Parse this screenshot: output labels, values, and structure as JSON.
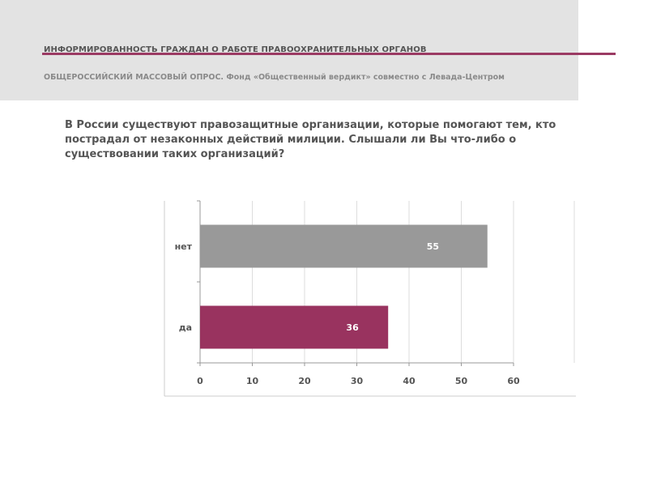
{
  "header": {
    "title": "ИНФОРМИРОВАННОСТЬ ГРАЖДАН О РАБОТЕ ПРАВООХРАНИТЕЛЬНЫХ ОРГАНОВ",
    "subtitle": "ОБЩЕРОССИЙСКИЙ МАССОВЫЙ ОПРОС. Фонд «Общественный вердикт» совместно с Левада-Центром"
  },
  "question": "В России существуют правозащитные организации, которые помогают тем, кто пострадал от незаконных действий милиции. Слышали ли Вы что-либо о существовании таких организаций?",
  "colors": {
    "accent": "#9b3a63",
    "header_bg": "#e3e3e3",
    "bar_no": "#999999",
    "bar_yes": "#99335f",
    "grid": "#dddddd",
    "axis": "#999999",
    "tick_text": "#555555",
    "data_label": "#ffffff"
  },
  "chart_data": {
    "type": "bar",
    "orientation": "horizontal",
    "categories": [
      "нет",
      "да"
    ],
    "values": [
      55,
      36
    ],
    "data_labels": [
      "55",
      "36"
    ],
    "bar_colors": [
      "#999999",
      "#99335f"
    ],
    "xlim": [
      0,
      60
    ],
    "x_ticks": [
      "0",
      "10",
      "20",
      "30",
      "40",
      "50",
      "60"
    ],
    "grid": true,
    "legend": "none"
  }
}
